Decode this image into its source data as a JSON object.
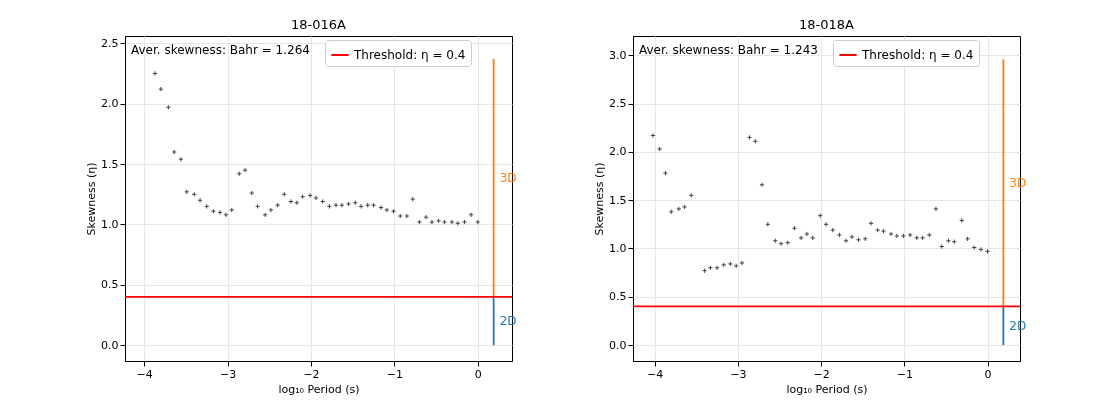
{
  "chart_data": [
    {
      "type": "scatter",
      "title": "18-016A",
      "xlabel": "log₁₀ Period (s)",
      "ylabel": "Skewness (η)",
      "xlim": [
        -4.23,
        0.41
      ],
      "ylim": [
        -0.13,
        2.56
      ],
      "xticks": [
        {
          "value": -4,
          "label": "−4"
        },
        {
          "value": -3,
          "label": "−3"
        },
        {
          "value": -2,
          "label": "−2"
        },
        {
          "value": -1,
          "label": "−1"
        },
        0
      ],
      "yticks": [
        {
          "value": 0,
          "label": "0.0"
        },
        {
          "value": 0.5,
          "label": "0.5"
        },
        {
          "value": 1,
          "label": "1.0"
        },
        {
          "value": 1.5,
          "label": "1.5"
        },
        {
          "value": 2,
          "label": "2.0"
        },
        {
          "value": 2.5,
          "label": "2.5"
        }
      ],
      "grid": true,
      "legend": "top right",
      "marker": "cross",
      "annotations": [
        "Aver. skewness: Bahr = 1.264"
      ],
      "ref_lines": [
        {
          "axis": "y",
          "value": 0.4,
          "label": "Threshold: η = 0.4",
          "color": "#ff0000"
        }
      ],
      "series": [
        {
          "color": "#444444",
          "x": [
            -3.87,
            -3.8,
            -3.71,
            -3.64,
            -3.56,
            -3.49,
            -3.4,
            -3.33,
            -3.25,
            -3.17,
            -3.09,
            -3.02,
            -2.95,
            -2.86,
            -2.79,
            -2.71,
            -2.64,
            -2.55,
            -2.48,
            -2.4,
            -2.32,
            -2.24,
            -2.17,
            -2.1,
            -2.01,
            -1.94,
            -1.86,
            -1.78,
            -1.7,
            -1.63,
            -1.55,
            -1.47,
            -1.4,
            -1.32,
            -1.25,
            -1.16,
            -1.09,
            -1.01,
            -0.93,
            -0.85,
            -0.78,
            -0.7,
            -0.62,
            -0.55,
            -0.47,
            -0.4,
            -0.31,
            -0.24,
            -0.16,
            -0.08,
            0
          ],
          "values": [
            2.25,
            2.12,
            1.97,
            1.6,
            1.54,
            1.27,
            1.25,
            1.2,
            1.15,
            1.11,
            1.1,
            1.08,
            1.12,
            1.42,
            1.45,
            1.26,
            1.15,
            1.08,
            1.12,
            1.16,
            1.25,
            1.19,
            1.18,
            1.23,
            1.24,
            1.22,
            1.19,
            1.15,
            1.16,
            1.16,
            1.17,
            1.18,
            1.15,
            1.16,
            1.16,
            1.14,
            1.12,
            1.11,
            1.07,
            1.07,
            1.21,
            1.02,
            1.06,
            1.02,
            1.03,
            1.02,
            1.02,
            1.01,
            1.02,
            1.08,
            1.02
          ]
        },
        {
          "type": "line",
          "name": "3D",
          "marker": "none",
          "color": "#ff7f0e",
          "x": [
            0.19,
            0.19
          ],
          "values": [
            0.4,
            2.37
          ]
        },
        {
          "type": "line",
          "name": "2D",
          "marker": "none",
          "color": "#1f77b4",
          "x": [
            0.19,
            0.19
          ],
          "values": [
            0,
            0.4
          ]
        }
      ]
    },
    {
      "type": "scatter",
      "title": "18-018A",
      "xlabel": "log₁₀ Period (s)",
      "ylabel": "Skewness (η)",
      "xlim": [
        -4.26,
        0.39
      ],
      "ylim": [
        -0.165,
        3.2
      ],
      "xticks": [
        {
          "value": -4,
          "label": "−4"
        },
        {
          "value": -3,
          "label": "−3"
        },
        {
          "value": -2,
          "label": "−2"
        },
        {
          "value": -1,
          "label": "−1"
        },
        0
      ],
      "yticks": [
        {
          "value": 0,
          "label": "0.0"
        },
        {
          "value": 0.5,
          "label": "0.5"
        },
        {
          "value": 1,
          "label": "1.0"
        },
        {
          "value": 1.5,
          "label": "1.5"
        },
        {
          "value": 2,
          "label": "2.0"
        },
        {
          "value": 2.5,
          "label": "2.5"
        },
        {
          "value": 3,
          "label": "3.0"
        }
      ],
      "grid": true,
      "legend": "top right",
      "marker": "cross",
      "annotations": [
        "Aver. skewness: Bahr = 1.243"
      ],
      "ref_lines": [
        {
          "axis": "y",
          "value": 0.4,
          "label": "Threshold: η = 0.4",
          "color": "#ff0000"
        }
      ],
      "series": [
        {
          "color": "#444444",
          "x": [
            -4.02,
            -3.94,
            -3.87,
            -3.8,
            -3.71,
            -3.64,
            -3.56,
            -3.4,
            -3.33,
            -3.25,
            -3.17,
            -3.09,
            -3.02,
            -2.95,
            -2.86,
            -2.79,
            -2.71,
            -2.64,
            -2.55,
            -2.48,
            -2.4,
            -2.32,
            -2.24,
            -2.17,
            -2.1,
            -2.01,
            -1.94,
            -1.86,
            -1.78,
            -1.7,
            -1.63,
            -1.55,
            -1.47,
            -1.4,
            -1.32,
            -1.25,
            -1.16,
            -1.09,
            -1.01,
            -0.93,
            -0.85,
            -0.78,
            -0.7,
            -0.62,
            -0.55,
            -0.47,
            -0.4,
            -0.31,
            -0.24,
            -0.16,
            -0.08,
            0
          ],
          "values": [
            2.17,
            2.03,
            1.78,
            1.38,
            1.41,
            1.43,
            1.55,
            0.77,
            0.8,
            0.8,
            0.83,
            0.84,
            0.82,
            0.85,
            2.15,
            2.11,
            1.66,
            1.25,
            1.08,
            1.05,
            1.06,
            1.21,
            1.11,
            1.15,
            1.11,
            1.34,
            1.25,
            1.19,
            1.14,
            1.08,
            1.12,
            1.09,
            1.1,
            1.26,
            1.19,
            1.18,
            1.15,
            1.13,
            1.13,
            1.14,
            1.11,
            1.11,
            1.14,
            1.41,
            1.02,
            1.08,
            1.07,
            1.29,
            1.1,
            1.01,
            0.99,
            0.97
          ]
        },
        {
          "type": "line",
          "name": "3D",
          "marker": "none",
          "color": "#ff7f0e",
          "x": [
            0.19,
            0.19
          ],
          "values": [
            0.4,
            2.96
          ]
        },
        {
          "type": "line",
          "name": "2D",
          "marker": "none",
          "color": "#1f77b4",
          "x": [
            0.19,
            0.19
          ],
          "values": [
            0,
            0.4
          ]
        }
      ]
    }
  ]
}
